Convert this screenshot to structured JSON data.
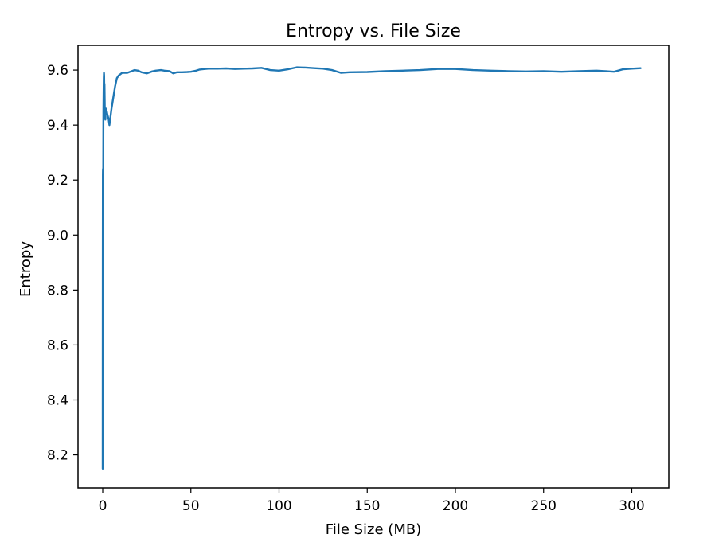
{
  "chart_data": {
    "type": "line",
    "title": "Entropy vs. File Size",
    "xlabel": "File Size (MB)",
    "ylabel": "Entropy",
    "xlim": [
      -14,
      321
    ],
    "ylim": [
      8.08,
      9.69
    ],
    "xticks": [
      0,
      50,
      100,
      150,
      200,
      250,
      300
    ],
    "xtick_labels": [
      "0",
      "50",
      "100",
      "150",
      "200",
      "250",
      "300"
    ],
    "yticks": [
      8.2,
      8.4,
      8.6,
      8.8,
      9.0,
      9.2,
      9.4,
      9.6
    ],
    "ytick_labels": [
      "8.2",
      "8.4",
      "8.6",
      "8.8",
      "9.0",
      "9.2",
      "9.4",
      "9.6"
    ],
    "grid": false,
    "series": [
      {
        "color": "#1f77b4",
        "x": [
          0.0,
          0.02,
          0.05,
          0.1,
          0.15,
          0.2,
          0.3,
          0.4,
          0.5,
          0.6,
          0.7,
          0.8,
          0.9,
          1.0,
          1.2,
          1.5,
          1.8,
          2.0,
          2.3,
          2.6,
          3.0,
          3.4,
          3.8,
          4.2,
          4.6,
          5.0,
          5.5,
          6.0,
          7.0,
          8.0,
          9.0,
          10.0,
          11.0,
          12.0,
          14.0,
          16.0,
          18.0,
          20.0,
          22.0,
          25.0,
          28.0,
          30.0,
          33.0,
          35.0,
          38.0,
          40.0,
          42.0,
          45.0,
          48.0,
          50.0,
          53.0,
          55.0,
          58.0,
          60.0,
          65.0,
          70.0,
          75.0,
          80.0,
          85.0,
          90.0,
          95.0,
          100.0,
          105.0,
          110.0,
          115.0,
          120.0,
          125.0,
          130.0,
          135.0,
          140.0,
          150.0,
          160.0,
          170.0,
          180.0,
          190.0,
          200.0,
          210.0,
          220.0,
          230.0,
          240.0,
          250.0,
          260.0,
          270.0,
          280.0,
          285.0,
          290.0,
          295.0,
          300.0,
          305.0
        ],
        "y": [
          8.15,
          8.5,
          8.9,
          9.22,
          9.24,
          9.07,
          9.2,
          9.45,
          9.52,
          9.57,
          9.59,
          9.58,
          9.52,
          9.55,
          9.45,
          9.42,
          9.46,
          9.44,
          9.45,
          9.44,
          9.43,
          9.42,
          9.4,
          9.42,
          9.44,
          9.46,
          9.48,
          9.5,
          9.54,
          9.57,
          9.58,
          9.585,
          9.59,
          9.59,
          9.59,
          9.595,
          9.6,
          9.598,
          9.592,
          9.588,
          9.595,
          9.598,
          9.6,
          9.598,
          9.596,
          9.588,
          9.592,
          9.592,
          9.593,
          9.594,
          9.598,
          9.602,
          9.604,
          9.605,
          9.605,
          9.606,
          9.604,
          9.605,
          9.606,
          9.608,
          9.6,
          9.598,
          9.603,
          9.61,
          9.609,
          9.607,
          9.605,
          9.6,
          9.59,
          9.592,
          9.593,
          9.596,
          9.598,
          9.6,
          9.604,
          9.604,
          9.6,
          9.598,
          9.596,
          9.595,
          9.596,
          9.594,
          9.596,
          9.598,
          9.596,
          9.594,
          9.603,
          9.605,
          9.607
        ]
      }
    ]
  }
}
